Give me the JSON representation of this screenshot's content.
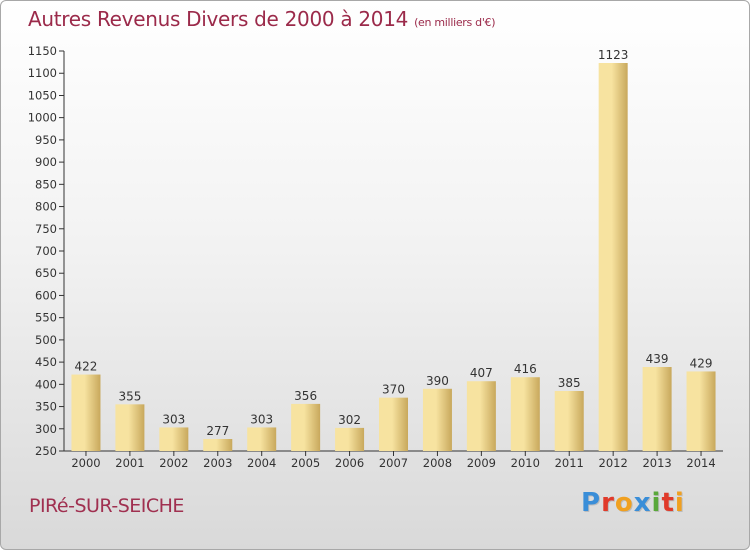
{
  "header": {
    "title": "Autres Revenus Divers de 2000 à 2014",
    "unit": "(en milliers d'€)"
  },
  "footer": {
    "city": "PIRé-SUR-SEICHE",
    "logo": [
      "P",
      "r",
      "o",
      "x",
      "i",
      "t",
      "i"
    ],
    "logo_colors": [
      "#3a8ed8",
      "#e03a2a",
      "#f0a020",
      "#3a8ed8",
      "#5aa83a",
      "#e03a2a",
      "#f0a020"
    ]
  },
  "chart_data": {
    "type": "bar",
    "title": "Autres Revenus Divers de 2000 à 2014",
    "categories": [
      "2000",
      "2001",
      "2002",
      "2003",
      "2004",
      "2005",
      "2006",
      "2007",
      "2008",
      "2009",
      "2010",
      "2011",
      "2012",
      "2013",
      "2014"
    ],
    "values": [
      422,
      355,
      303,
      277,
      303,
      356,
      302,
      370,
      390,
      407,
      416,
      385,
      1123,
      439,
      429
    ],
    "ylim": [
      250,
      1150
    ],
    "yticks": [
      250,
      300,
      350,
      400,
      450,
      500,
      550,
      600,
      650,
      700,
      750,
      800,
      850,
      900,
      950,
      1000,
      1050,
      1100,
      1150
    ],
    "grid": false,
    "colors": {
      "bar_light": "#f7e3a0",
      "bar_dark": "#c8a85c",
      "axis": "#333333"
    }
  }
}
